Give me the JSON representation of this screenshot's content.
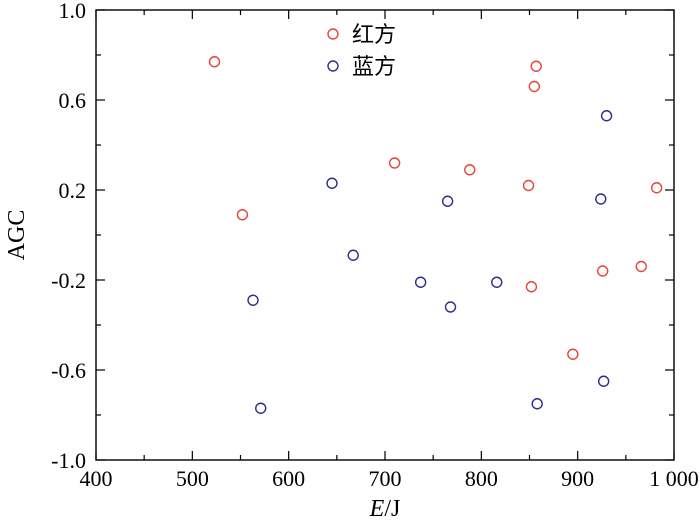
{
  "chart_data": {
    "type": "scatter",
    "xlabel_italic": "E",
    "xlabel_unit": "/J",
    "ylabel": "AGC",
    "xlim": [
      400,
      1000
    ],
    "ylim": [
      -1.0,
      1.0
    ],
    "xticks": [
      400,
      500,
      600,
      700,
      800,
      900,
      1000
    ],
    "xtick_labels": [
      "400",
      "500",
      "600",
      "700",
      "800",
      "900",
      "1 000"
    ],
    "yticks": [
      -1.0,
      -0.6,
      -0.2,
      0.2,
      0.6,
      1.0
    ],
    "ytick_labels": [
      "-1.0",
      "-0.6",
      "-0.2",
      "0.2",
      "0.6",
      "1.0"
    ],
    "grid": false,
    "legend_position": "top-center",
    "series": [
      {
        "name": "红方",
        "color": "#e8443a",
        "points": [
          [
            523,
            0.77
          ],
          [
            552,
            0.09
          ],
          [
            710,
            0.32
          ],
          [
            788,
            0.29
          ],
          [
            849,
            0.22
          ],
          [
            852,
            -0.23
          ],
          [
            855,
            0.66
          ],
          [
            857,
            0.75
          ],
          [
            895,
            -0.53
          ],
          [
            926,
            -0.16
          ],
          [
            966,
            -0.14
          ],
          [
            982,
            0.21
          ]
        ]
      },
      {
        "name": "蓝方",
        "color": "#2e2e8c",
        "points": [
          [
            563,
            -0.29
          ],
          [
            571,
            -0.77
          ],
          [
            645,
            0.23
          ],
          [
            667,
            -0.09
          ],
          [
            737,
            -0.21
          ],
          [
            765,
            0.15
          ],
          [
            768,
            -0.32
          ],
          [
            816,
            -0.21
          ],
          [
            858,
            -0.75
          ],
          [
            924,
            0.16
          ],
          [
            927,
            -0.65
          ],
          [
            930,
            0.53
          ]
        ]
      }
    ]
  }
}
